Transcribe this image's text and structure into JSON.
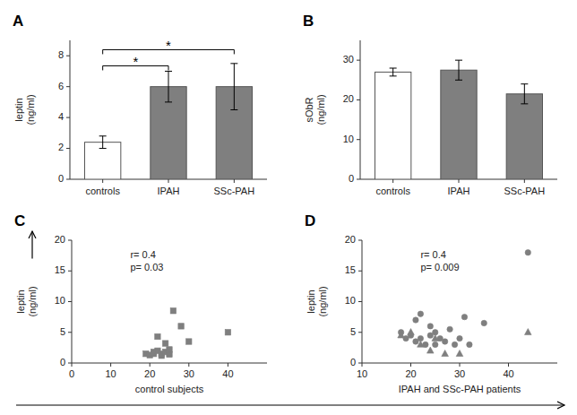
{
  "chart_data": [
    {
      "type": "bar",
      "title": "A",
      "categories": [
        "controls",
        "IPAH",
        "SSc-PAH"
      ],
      "values": [
        2.4,
        6.0,
        6.0
      ],
      "errors": [
        0.4,
        1.0,
        1.5
      ],
      "colors": [
        "white",
        "#7f7f7f",
        "#7f7f7f"
      ],
      "ylabel": "leptin\n(ng/ml)",
      "ylim": [
        0,
        9
      ],
      "yticks": [
        0,
        2,
        4,
        6,
        8
      ],
      "annotations": [
        {
          "text": "*",
          "between": [
            "controls",
            "IPAH"
          ]
        },
        {
          "text": "*",
          "between": [
            "controls",
            "SSc-PAH"
          ]
        }
      ]
    },
    {
      "type": "bar",
      "title": "B",
      "categories": [
        "controls",
        "IPAH",
        "SSc-PAH"
      ],
      "values": [
        27.0,
        27.5,
        21.5
      ],
      "errors": [
        1.0,
        2.5,
        2.5
      ],
      "colors": [
        "white",
        "#7f7f7f",
        "#7f7f7f"
      ],
      "ylabel": "sObR\n(ng/ml)",
      "ylim": [
        0,
        35
      ],
      "yticks": [
        0,
        10,
        20,
        30
      ]
    },
    {
      "type": "scatter",
      "title": "C",
      "x": [
        19,
        20,
        21,
        21,
        22,
        22,
        23,
        23,
        24,
        24,
        25,
        25,
        26,
        28,
        30,
        40
      ],
      "values": [
        1.5,
        1.3,
        1.5,
        1.8,
        2.0,
        4.3,
        1.2,
        1.5,
        1.8,
        3.2,
        1.4,
        2.2,
        8.5,
        6.0,
        3.5,
        5.0
      ],
      "marker": "square",
      "color": "#7f7f7f",
      "xlabel": "control subjects",
      "ylabel": "leptin\n(ng/ml)",
      "xlim": [
        0,
        50
      ],
      "ylim": [
        0,
        20
      ],
      "xticks": [
        0,
        10,
        20,
        30,
        40
      ],
      "yticks": [
        0,
        5,
        10,
        15,
        20
      ],
      "annotations": [
        "r= 0.4",
        "p= 0.03"
      ]
    },
    {
      "type": "scatter",
      "title": "D",
      "color": "#7f7f7f",
      "series": [
        {
          "marker": "circle",
          "x": [
            18,
            19,
            20,
            21,
            21,
            22,
            22,
            23,
            24,
            24,
            25,
            25,
            26,
            27,
            28,
            29,
            30,
            31,
            32,
            35,
            44
          ],
          "values": [
            5.0,
            4.0,
            4.5,
            3.5,
            7.0,
            4.0,
            8.0,
            3.0,
            4.5,
            6.0,
            3.0,
            5.0,
            4.0,
            3.5,
            5.5,
            3.0,
            4.0,
            7.5,
            3.0,
            6.5,
            18.0
          ]
        },
        {
          "marker": "triangle",
          "x": [
            18,
            20,
            22,
            24,
            25,
            27,
            30,
            44
          ],
          "values": [
            4.5,
            5.0,
            3.0,
            2.0,
            4.0,
            1.5,
            1.5,
            5.0
          ]
        }
      ],
      "xlabel": "IPAH and SSc-PAH patients",
      "ylabel": "leptin\n(ng/ml)",
      "xlim": [
        10,
        50
      ],
      "ylim": [
        0,
        20
      ],
      "xticks": [
        10,
        20,
        30,
        40
      ],
      "yticks": [
        0,
        5,
        10,
        15,
        20
      ],
      "annotations": [
        "r= 0.4",
        "p= 0.009"
      ]
    }
  ]
}
